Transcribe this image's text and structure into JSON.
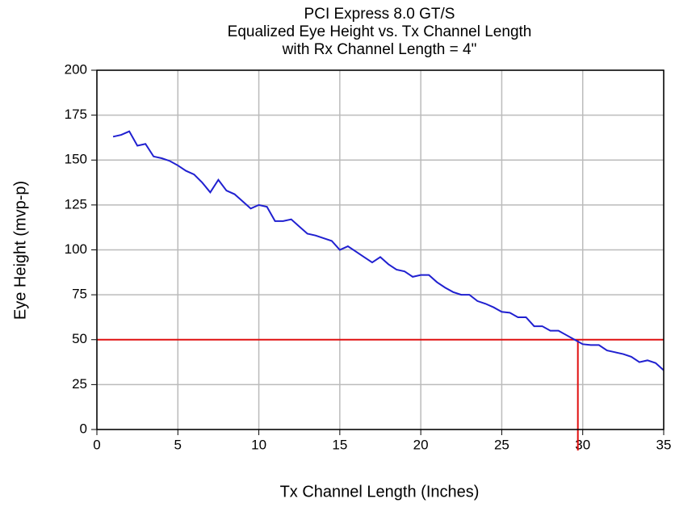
{
  "chart_data": {
    "type": "line",
    "title": "PCI Express 8.0 GT/S",
    "subtitle": [
      "Equalized Eye Height vs. Tx Channel Length",
      "with Rx Channel Length = 4\""
    ],
    "x_label": "Tx Channel Length (Inches)",
    "y_label": "Eye Height (mvp-p)",
    "x": [
      1,
      1.5,
      2,
      2.5,
      3,
      3.5,
      4,
      4.5,
      5,
      5.5,
      6,
      6.5,
      7,
      7.5,
      8,
      8.5,
      9,
      9.5,
      10,
      10.5,
      11,
      11.5,
      12,
      12.5,
      13,
      13.5,
      14,
      14.5,
      15,
      15.5,
      16,
      16.5,
      17,
      17.5,
      18,
      18.5,
      19,
      19.5,
      20,
      20.5,
      21,
      21.5,
      22,
      22.5,
      23,
      23.5,
      24,
      24.5,
      25,
      25.5,
      26,
      26.5,
      27,
      27.5,
      28,
      28.5,
      29,
      29.5,
      30,
      30.5,
      31,
      31.5,
      32,
      32.5,
      33,
      33.5,
      34,
      34.5,
      35
    ],
    "series": [
      {
        "color": "#2020d0",
        "values": [
          163,
          164,
          166,
          158,
          159,
          152,
          151,
          149.5,
          147,
          144,
          142,
          137.5,
          132,
          139,
          133,
          131,
          127,
          123,
          125,
          124,
          116,
          116,
          117,
          113,
          109,
          108,
          106.5,
          105,
          100,
          102,
          99,
          96,
          93,
          96,
          92,
          89,
          88,
          85,
          86,
          86,
          82,
          79,
          76.5,
          75,
          75,
          71.5,
          70,
          68,
          65.5,
          65,
          62.5,
          62.5,
          57.5,
          57.5,
          55,
          55,
          52.5,
          50,
          47.5,
          47,
          47,
          44,
          43,
          42,
          40.5,
          37.5,
          38.5,
          37,
          33
        ]
      }
    ],
    "reference_lines": {
      "color": "#e01010",
      "y": 50,
      "x": 29.7
    },
    "xlim": [
      0,
      35
    ],
    "xticks": [
      0,
      5,
      10,
      15,
      20,
      25,
      30,
      35
    ],
    "ylim": [
      0,
      200
    ],
    "yticks": [
      0,
      25,
      50,
      75,
      100,
      125,
      150,
      175,
      200
    ],
    "grid": true
  }
}
